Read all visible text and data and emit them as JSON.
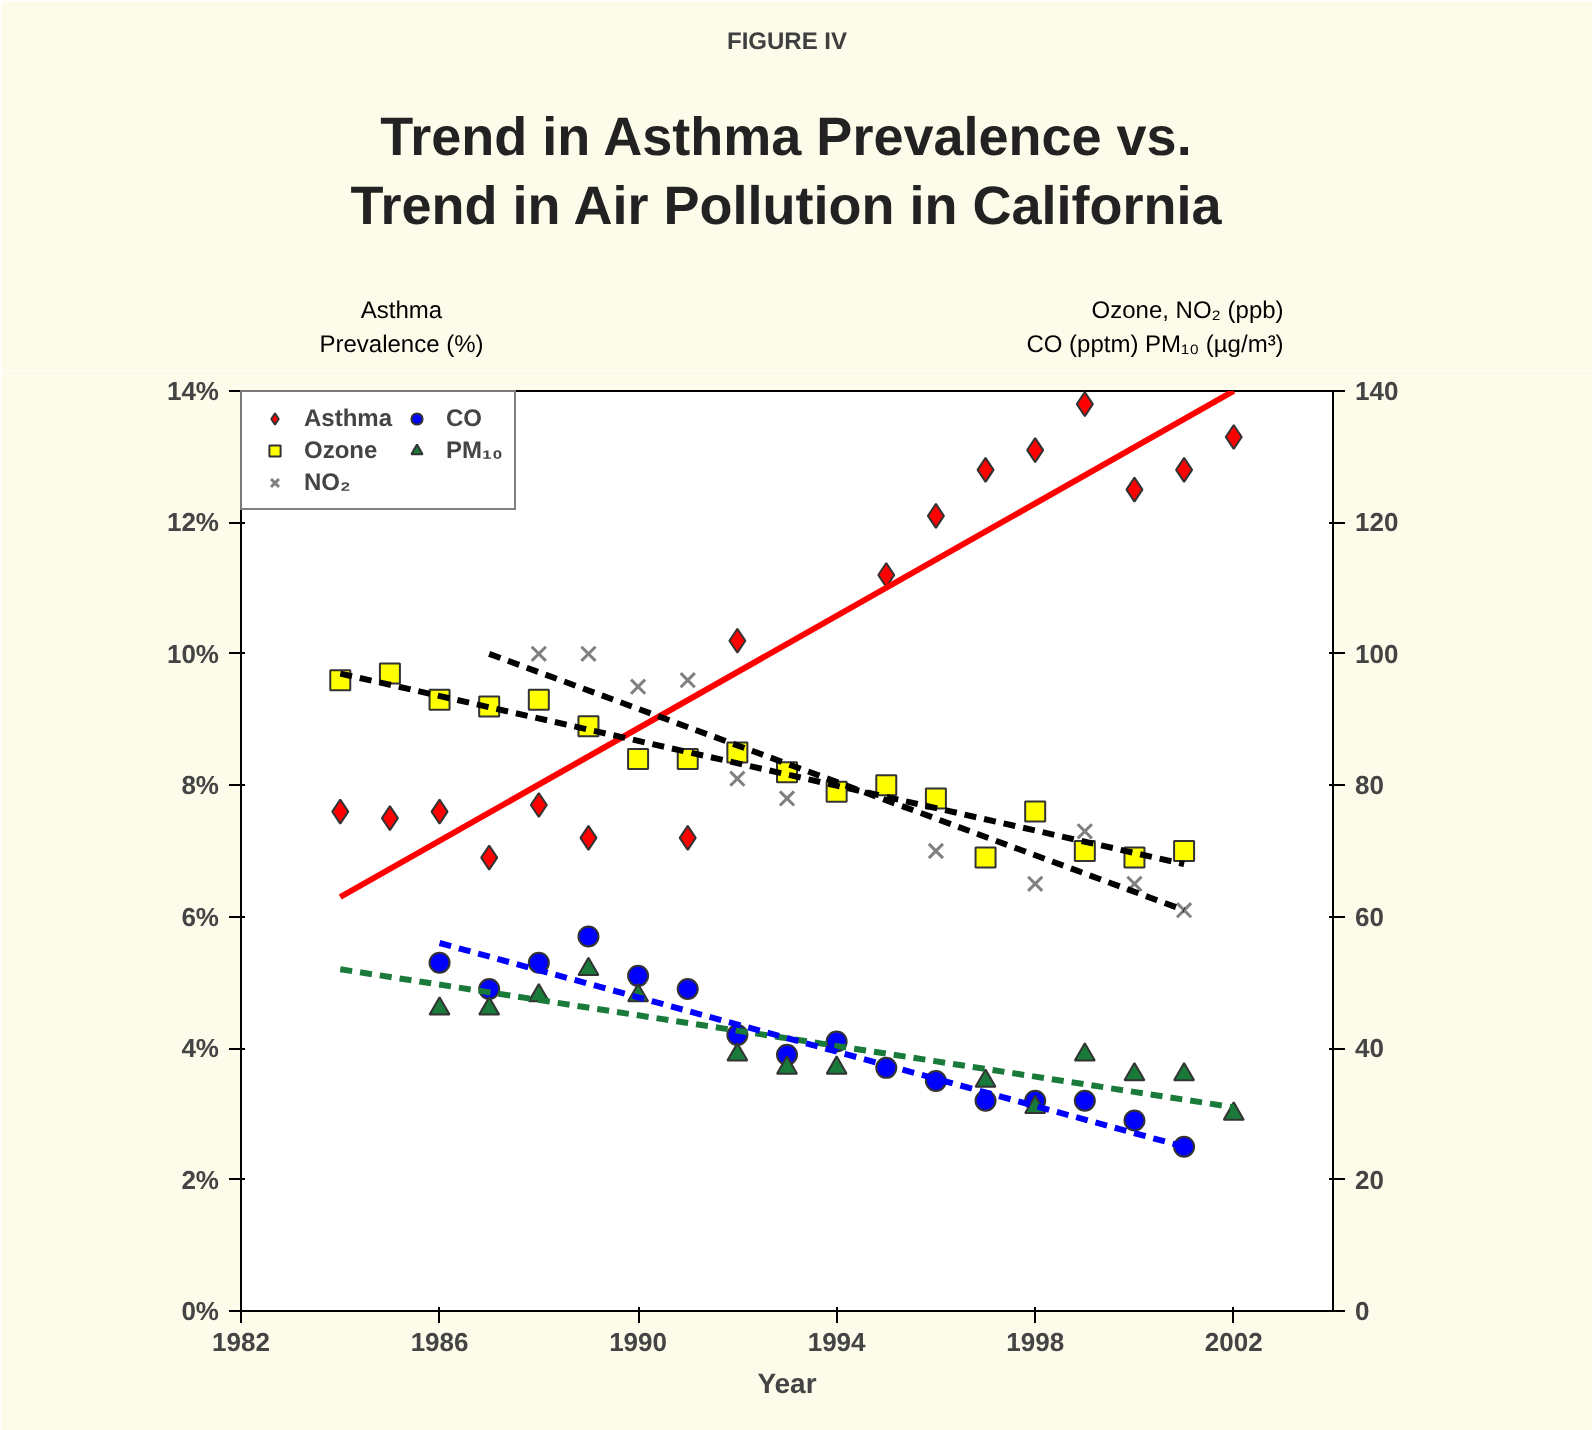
{
  "chart_data": {
    "type": "scatter",
    "subtitle": "FIGURE IV",
    "title": "Trend in Asthma Prevalence vs.\nTrend in Air Pollution in California",
    "xlabel": "Year",
    "ylabel": "Asthma\nPrevalence (%)",
    "y2label": "Ozone, NO₂ (ppb)\nCO (pptm) PM₁₀ (µg/m³)",
    "xlim": [
      1982,
      2004
    ],
    "xticks": [
      1982,
      1986,
      1990,
      1994,
      1998,
      2002
    ],
    "ylim": [
      0,
      14
    ],
    "yticks": [
      {
        "value": 0,
        "label": "0%"
      },
      {
        "value": 2,
        "label": "2%"
      },
      {
        "value": 4,
        "label": "4%"
      },
      {
        "value": 6,
        "label": "6%"
      },
      {
        "value": 8,
        "label": "8%"
      },
      {
        "value": 10,
        "label": "10%"
      },
      {
        "value": 12,
        "label": "12%"
      },
      {
        "value": 14,
        "label": "14%"
      }
    ],
    "y2lim": [
      0,
      140
    ],
    "y2ticks": [
      0,
      20,
      40,
      60,
      80,
      100,
      120,
      140
    ],
    "grid": false,
    "legend": "top left",
    "series": [
      {
        "name": "Asthma",
        "color": "#ff0000",
        "marker": "diamond",
        "x": [
          1984,
          1985,
          1986,
          1987,
          1988,
          1989,
          1991,
          1992,
          1995,
          1996,
          1997,
          1998,
          1999,
          2000,
          2001,
          2002
        ],
        "values": [
          7.6,
          7.5,
          7.6,
          6.9,
          7.7,
          7.2,
          7.2,
          10.2,
          11.2,
          12.1,
          12.8,
          13.1,
          13.8,
          12.5,
          12.8,
          13.3
        ]
      },
      {
        "name": "Ozone",
        "color": "#ffff00",
        "marker": "square",
        "axis": "y2",
        "x": [
          1984,
          1985,
          1986,
          1987,
          1988,
          1989,
          1990,
          1991,
          1992,
          1993,
          1994,
          1995,
          1996,
          1997,
          1998,
          1999,
          2000,
          2001
        ],
        "values": [
          96,
          97,
          93,
          92,
          93,
          89,
          84,
          84,
          85,
          82,
          79,
          80,
          78,
          69,
          76,
          70,
          69,
          70
        ]
      },
      {
        "name": "NO₂",
        "color": "#808080",
        "marker": "cross",
        "axis": "y2",
        "x": [
          1988,
          1989,
          1990,
          1991,
          1992,
          1993,
          1996,
          1998,
          1999,
          2000,
          2001
        ],
        "values": [
          100,
          100,
          95,
          96,
          81,
          78,
          70,
          65,
          73,
          65,
          61
        ]
      },
      {
        "name": "CO",
        "color": "#0000ff",
        "marker": "circle",
        "axis": "y2",
        "x": [
          1986,
          1987,
          1988,
          1989,
          1990,
          1991,
          1992,
          1993,
          1994,
          1995,
          1996,
          1997,
          1998,
          1999,
          2000,
          2001
        ],
        "values": [
          53,
          49,
          53,
          57,
          51,
          49,
          42,
          39,
          41,
          37,
          35,
          32,
          32,
          32,
          29,
          25
        ]
      },
      {
        "name": "PM₁₀",
        "color": "#1a7a3a",
        "marker": "triangle",
        "axis": "y2",
        "x": [
          1986,
          1987,
          1988,
          1989,
          1990,
          1992,
          1993,
          1994,
          1997,
          1998,
          1999,
          2000,
          2001,
          2002
        ],
        "values": [
          46,
          46,
          48,
          52,
          48,
          39,
          37,
          37,
          35,
          31,
          39,
          36,
          36,
          30
        ]
      },
      {
        "type": "line",
        "color": "#ff0000",
        "line_style": "solid",
        "marker": "none",
        "x": [
          1984,
          2002
        ],
        "values": [
          6.3,
          14.0
        ]
      },
      {
        "type": "line",
        "color": "#000000",
        "line_style": "dashed",
        "marker": "none",
        "axis": "y2",
        "x": [
          1984,
          2001
        ],
        "values": [
          97,
          68
        ]
      },
      {
        "type": "line",
        "color": "#000000",
        "line_style": "dashed",
        "marker": "none",
        "axis": "y2",
        "x": [
          1987,
          2001
        ],
        "values": [
          100,
          61
        ]
      },
      {
        "type": "line",
        "color": "#1a7a3a",
        "line_style": "dashed",
        "marker": "none",
        "axis": "y2",
        "x": [
          1984,
          2002
        ],
        "values": [
          52,
          31
        ]
      },
      {
        "type": "line",
        "color": "#0000ff",
        "line_style": "dashed",
        "marker": "none",
        "axis": "y2",
        "x": [
          1986,
          2001
        ],
        "values": [
          56,
          25
        ]
      }
    ]
  }
}
